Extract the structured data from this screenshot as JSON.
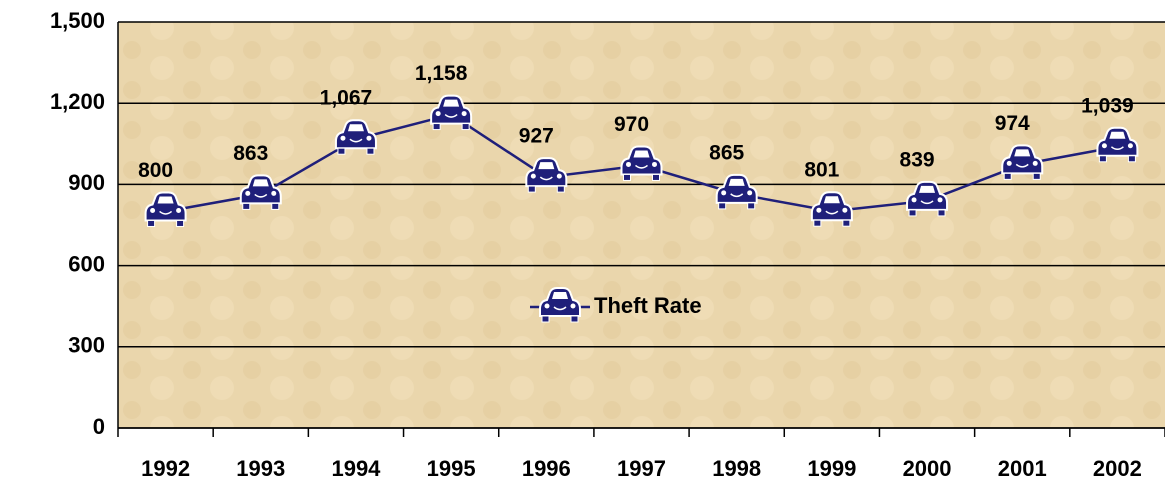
{
  "chart_data": {
    "type": "line",
    "categories": [
      "1992",
      "1993",
      "1994",
      "1995",
      "1996",
      "1997",
      "1998",
      "1999",
      "2000",
      "2001",
      "2002"
    ],
    "series": [
      {
        "name": "Theft Rate",
        "color": "#1f1f7a",
        "values": [
          800,
          863,
          1067,
          1158,
          927,
          970,
          865,
          801,
          839,
          974,
          1039
        ],
        "value_labels": [
          "800",
          "863",
          "1,067",
          "1,158",
          "927",
          "970",
          "865",
          "801",
          "839",
          "974",
          "1,039"
        ]
      }
    ],
    "ylim": [
      0,
      1500
    ],
    "yticks": [
      0,
      300,
      600,
      900,
      {
        "value": 1200,
        "label": "1,200"
      },
      {
        "value": 1500,
        "label": "1,500"
      }
    ],
    "grid": true,
    "legend": "center"
  }
}
